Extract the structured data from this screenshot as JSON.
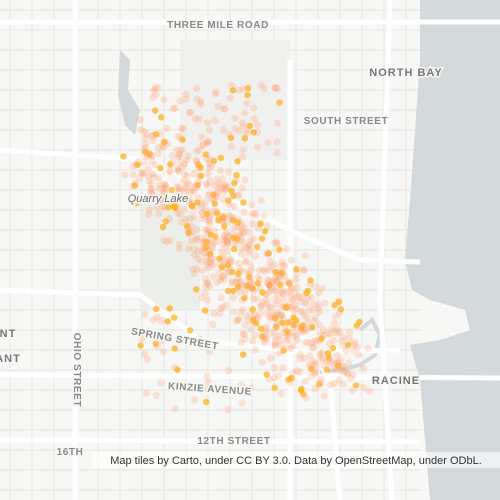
{
  "map": {
    "labels": {
      "three_mile_road": "THREE MILE ROAD",
      "north_bay": "NORTH BAY",
      "south_street": "SOUTH STREET",
      "quarry_lake": "Quarry Lake",
      "spring_street": "SPRING STREET",
      "racine": "RACINE",
      "kinzie_avenue": "KINZIE AVENUE",
      "twelfth_street": "12TH STREET",
      "sixteenth": "16TH",
      "ohio_street": "OHIO STREET",
      "left_a": "NT",
      "left_b": "ANT"
    },
    "attribution": "Map tiles by Carto, under CC BY 3.0. Data by OpenStreetMap, under ODbL."
  }
}
